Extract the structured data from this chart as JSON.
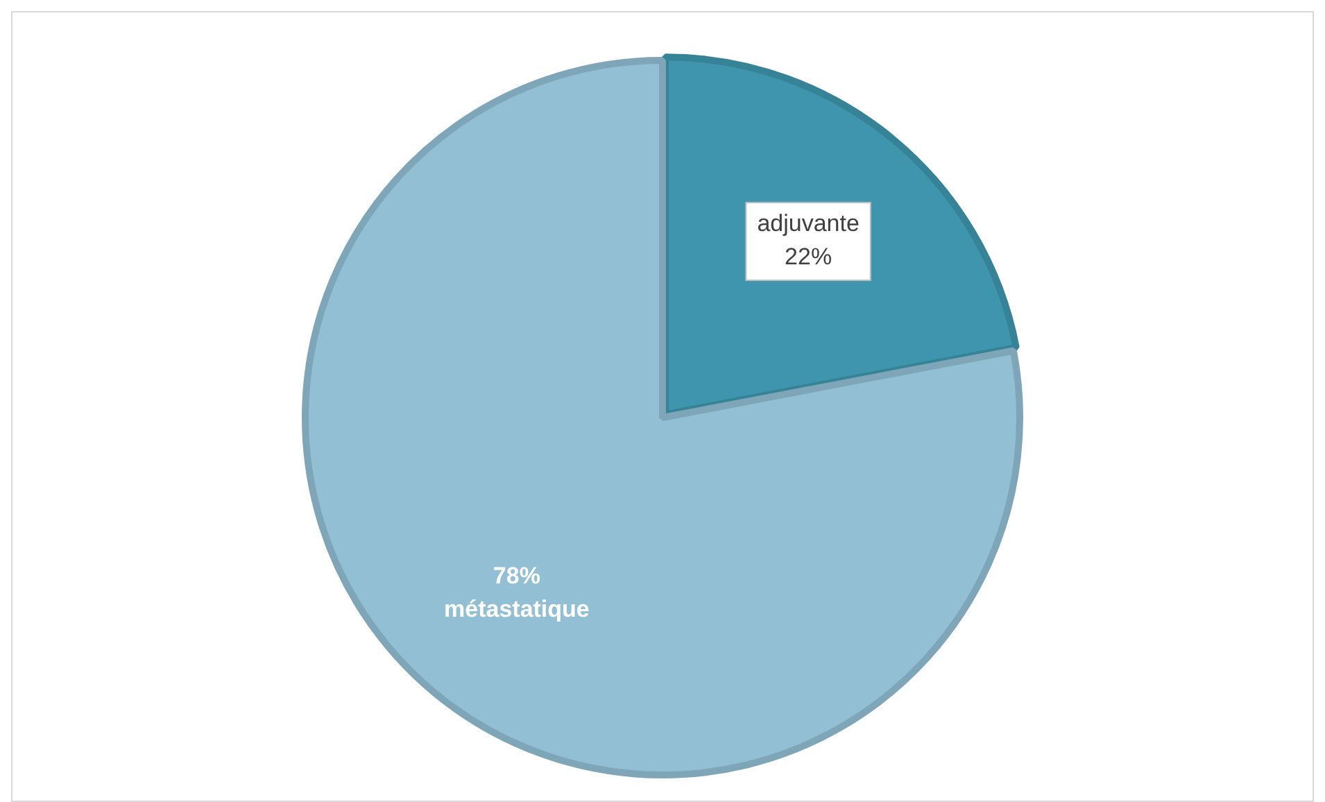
{
  "chart_data": {
    "type": "pie",
    "categories": [
      "adjuvante",
      "métastatique"
    ],
    "values": [
      22,
      78
    ],
    "colors": [
      "#3e95ad",
      "#92bfd3"
    ],
    "value_labels": [
      "22%",
      "78%"
    ],
    "legend": false
  }
}
